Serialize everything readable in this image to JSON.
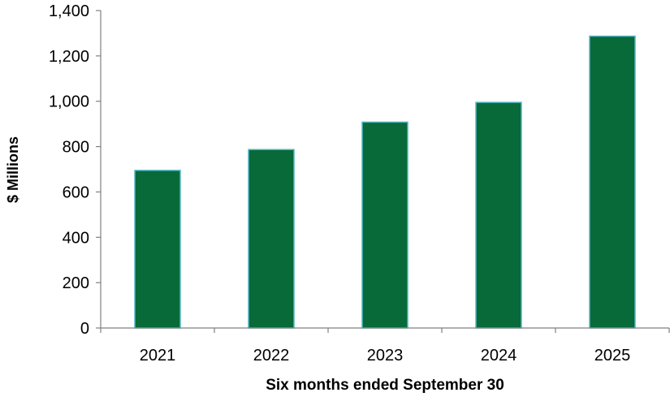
{
  "chart_data": {
    "type": "bar",
    "categories": [
      "2021",
      "2022",
      "2023",
      "2024",
      "2025"
    ],
    "values": [
      695,
      787,
      908,
      995,
      1287
    ],
    "title": "",
    "xlabel": "Six months ended September 30",
    "ylabel": "$ Millions",
    "ylim": [
      0,
      1400
    ],
    "yticks": [
      0,
      200,
      400,
      600,
      800,
      1000,
      1200,
      1400
    ],
    "ytick_labels": [
      "0",
      "200",
      "400",
      "600",
      "800",
      "1,000",
      "1,200",
      "1,400"
    ],
    "grid": false,
    "legend": "none",
    "colors": {
      "bar_fill": "#076a38",
      "bar_edge": "#55b6c6",
      "axis": "#808080"
    }
  }
}
